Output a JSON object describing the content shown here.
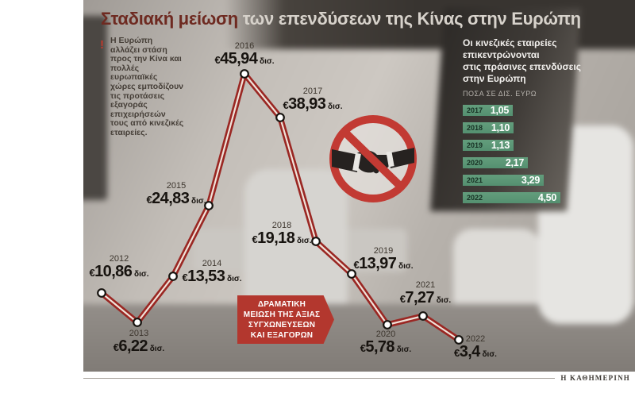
{
  "header": {
    "title_accent": "Σταδιακή μείωση",
    "title_rest": "των επενδύσεων της Κίνας στην Ευρώπη"
  },
  "intro": {
    "mark": "!",
    "text": "Η Ευρώπη αλλάζει στάση προς την Κίνα και πολλές ευρωπαϊκές χώρες εμποδίζουν τις προτάσεις εξαγοράς επιχειρήσεών τους από κινεζικές εταιρείες."
  },
  "chart_data": [
    {
      "type": "line",
      "title": "Σταδιακή μείωση των επενδύσεων της Κίνας στην Ευρώπη",
      "x": [
        "2012",
        "2013",
        "2014",
        "2015",
        "2016",
        "2017",
        "2018",
        "2019",
        "2020",
        "2021",
        "2022"
      ],
      "values": [
        10.86,
        6.22,
        13.53,
        24.83,
        45.94,
        38.93,
        19.18,
        13.97,
        5.78,
        7.27,
        3.4
      ],
      "display_values": [
        "10,86",
        "6,22",
        "13,53",
        "24,83",
        "45,94",
        "38,93",
        "19,18",
        "13,97",
        "5,78",
        "7,27",
        "3,4"
      ],
      "currency": "€",
      "unit": "δισ.",
      "ylim": [
        0,
        50
      ],
      "grid": false,
      "legend": "none"
    },
    {
      "type": "bar",
      "title": "Οι κινεζικές εταιρείες επικεντρώνονται στις πράσινες επενδύσεις στην Ευρώπη",
      "subtitle": "ΠΟΣΑ ΣΕ ΔΙΣ. ΕΥΡΩ",
      "categories": [
        "2017",
        "2018",
        "2019",
        "2020",
        "2021",
        "2022"
      ],
      "values": [
        1.05,
        1.1,
        1.13,
        2.17,
        3.29,
        4.5
      ],
      "display_values": [
        "1,05",
        "1,10",
        "1,13",
        "2,17",
        "3,29",
        "4,50"
      ],
      "orientation": "horizontal",
      "xlabel": "",
      "ylabel": ""
    }
  ],
  "callout": {
    "lines": [
      "ΔΡΑΜΑΤΙΚΗ",
      "ΜΕΙΩΣΗ ΤΗΣ ΑΞΙΑΣ",
      "ΣΥΓΧΩΝΕΥΣΕΩΝ",
      "ΚΑΙ ΕΞΑΓΟΡΩΝ"
    ]
  },
  "side_panel": {
    "title_lines": [
      "Οι κινεζικές εταιρείες",
      "επικεντρώνονται",
      "στις πράσινες επενδύσεις",
      "στην Ευρώπη"
    ],
    "subtitle": "ΠΟΣΑ ΣΕ ΔΙΣ. ΕΥΡΩ"
  },
  "footer": {
    "brand": "Η ΚΑΘΗΜΕΡΙΝΗ"
  },
  "colors": {
    "title_accent": "#6e2a21",
    "title_light": "#d7d2cb",
    "line_outer": "#9a2723",
    "line_inner": "#f0e3da",
    "dot_fill": "#ffffff",
    "dot_stroke": "#16130f",
    "callout_bg": "#b3372e",
    "bar_green": "#5b9674",
    "prohibition_red": "#c23a33"
  }
}
